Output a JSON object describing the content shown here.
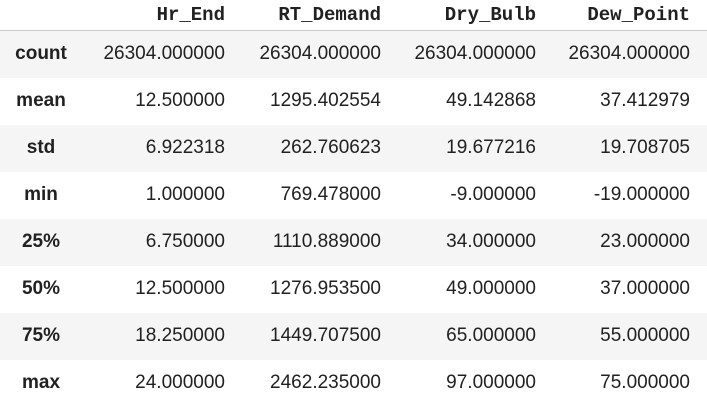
{
  "table": {
    "columns": [
      "Hr_End",
      "RT_Demand",
      "Dry_Bulb",
      "Dew_Point"
    ],
    "rows": [
      {
        "label": "count",
        "values": [
          "26304.000000",
          "26304.000000",
          "26304.000000",
          "26304.000000"
        ]
      },
      {
        "label": "mean",
        "values": [
          "12.500000",
          "1295.402554",
          "49.142868",
          "37.412979"
        ]
      },
      {
        "label": "std",
        "values": [
          "6.922318",
          "262.760623",
          "19.677216",
          "19.708705"
        ]
      },
      {
        "label": "min",
        "values": [
          "1.000000",
          "769.478000",
          "-9.000000",
          "-19.000000"
        ]
      },
      {
        "label": "25%",
        "values": [
          "6.750000",
          "1110.889000",
          "34.000000",
          "23.000000"
        ]
      },
      {
        "label": "50%",
        "values": [
          "12.500000",
          "1276.953500",
          "49.000000",
          "37.000000"
        ]
      },
      {
        "label": "75%",
        "values": [
          "18.250000",
          "1449.707500",
          "65.000000",
          "55.000000"
        ]
      },
      {
        "label": "max",
        "values": [
          "24.000000",
          "2462.235000",
          "97.000000",
          "75.000000"
        ]
      }
    ]
  }
}
